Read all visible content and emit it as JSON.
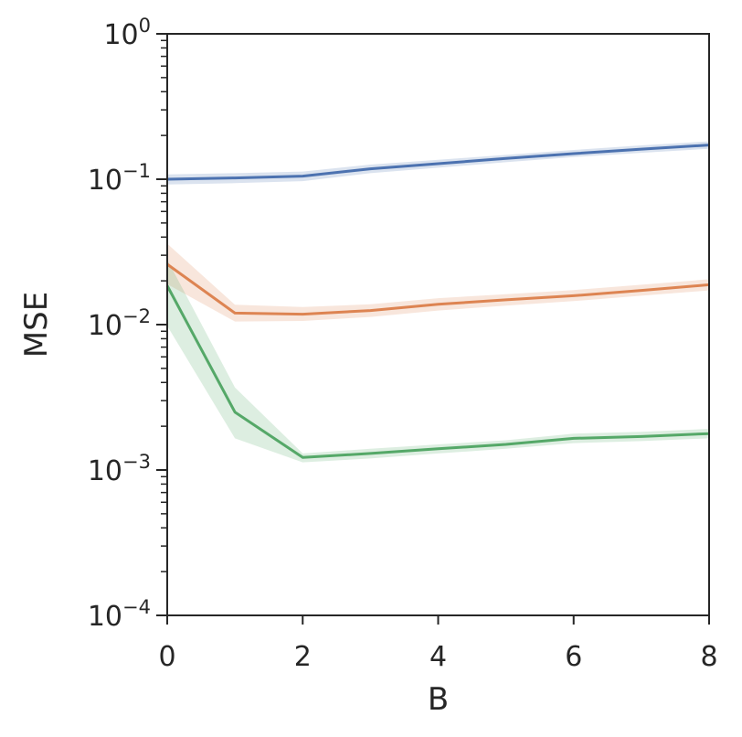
{
  "chart_data": {
    "type": "line",
    "title": "",
    "xlabel": "B",
    "ylabel": "MSE",
    "xlim": [
      0,
      8
    ],
    "ylim": [
      0.0001,
      1
    ],
    "yscale": "log",
    "grid": false,
    "x_ticks": [
      {
        "value": 0,
        "label": "0"
      },
      {
        "value": 2,
        "label": "2"
      },
      {
        "value": 4,
        "label": "4"
      },
      {
        "value": 6,
        "label": "6"
      },
      {
        "value": 8,
        "label": "8"
      }
    ],
    "y_ticks": [
      {
        "value": 1,
        "base": "10",
        "exp": "0"
      },
      {
        "value": 0.1,
        "base": "10",
        "exp": "−1"
      },
      {
        "value": 0.01,
        "base": "10",
        "exp": "−2"
      },
      {
        "value": 0.001,
        "base": "10",
        "exp": "−3"
      },
      {
        "value": 0.0001,
        "base": "10",
        "exp": "−4"
      }
    ],
    "x": [
      0,
      1,
      2,
      3,
      4,
      5,
      6,
      7,
      8
    ],
    "series": [
      {
        "color": "#4c72b0",
        "values": [
          0.1,
          0.102,
          0.105,
          0.118,
          0.128,
          0.139,
          0.15,
          0.161,
          0.172
        ],
        "lower": [
          0.092,
          0.094,
          0.097,
          0.11,
          0.12,
          0.131,
          0.142,
          0.152,
          0.162
        ],
        "upper": [
          0.108,
          0.11,
          0.113,
          0.126,
          0.136,
          0.147,
          0.159,
          0.171,
          0.182
        ]
      },
      {
        "color": "#dd8452",
        "values": [
          0.026,
          0.012,
          0.0118,
          0.0125,
          0.0138,
          0.0148,
          0.0158,
          0.0172,
          0.0188
        ],
        "lower": [
          0.019,
          0.0105,
          0.0106,
          0.0113,
          0.0125,
          0.0135,
          0.0145,
          0.0158,
          0.0172
        ],
        "upper": [
          0.036,
          0.0137,
          0.0132,
          0.0138,
          0.0152,
          0.0162,
          0.0173,
          0.0188,
          0.0205
        ]
      },
      {
        "color": "#55a868",
        "values": [
          0.0185,
          0.0025,
          0.00122,
          0.0013,
          0.0014,
          0.0015,
          0.00165,
          0.0017,
          0.00178
        ],
        "lower": [
          0.0098,
          0.00165,
          0.00113,
          0.0012,
          0.0013,
          0.0014,
          0.00153,
          0.00158,
          0.00165
        ],
        "upper": [
          0.028,
          0.0037,
          0.0013,
          0.0014,
          0.0015,
          0.0016,
          0.00178,
          0.00183,
          0.00192
        ]
      }
    ]
  }
}
